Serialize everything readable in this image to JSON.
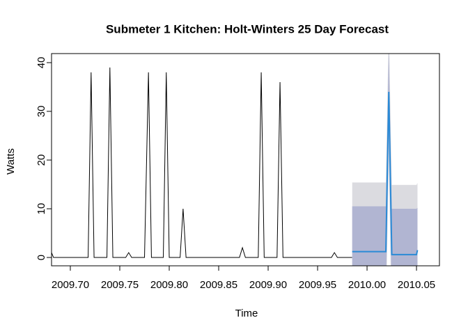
{
  "chart_data": {
    "type": "line",
    "title": "Submeter 1 Kitchen: Holt-Winters 25 Day Forecast",
    "x_label": "Time",
    "y_label": "Watts",
    "xlim": [
      2009.681,
      2010.0732
    ],
    "ylim": [
      -1.71,
      41.86
    ],
    "xticks": [
      {
        "value": 2009.7,
        "label": "2009.70"
      },
      2009.75,
      {
        "value": 2009.8,
        "label": "2009.80"
      },
      2009.85,
      {
        "value": 2009.9,
        "label": "2009.90"
      },
      2009.95,
      {
        "value": 2010.0,
        "label": "2010.00"
      },
      2010.05
    ],
    "yticks": [
      0,
      10,
      20,
      30,
      40
    ],
    "series": [
      {
        "color": "#000000",
        "x": [
          2009.681,
          2009.683,
          2009.718,
          2009.721,
          2009.724,
          2009.737,
          2009.74,
          2009.743,
          2009.756,
          2009.759,
          2009.762,
          2009.775,
          2009.779,
          2009.782,
          2009.794,
          2009.797,
          2009.8,
          2009.811,
          2009.814,
          2009.817,
          2009.871,
          2009.874,
          2009.877,
          2009.89,
          2009.893,
          2009.896,
          2009.909,
          2009.912,
          2009.915,
          2009.964,
          2009.967,
          2009.97,
          2009.985
        ],
        "values": [
          1,
          0,
          0,
          38,
          0,
          0,
          39,
          0,
          0,
          1,
          0,
          0,
          38,
          0,
          0,
          38,
          0,
          0,
          10,
          0,
          0,
          2,
          0,
          0,
          38,
          0,
          0,
          36,
          0,
          0,
          1,
          0,
          0
        ]
      },
      {
        "color": "#2a8ad6",
        "x": [
          2009.985,
          2010.019,
          2010.022,
          2010.025,
          2010.05,
          2010.051
        ],
        "values": [
          1.2,
          1.2,
          34,
          0.6,
          0.6,
          1.5
        ],
        "lower80": [
          -8,
          -8,
          25,
          -9,
          -9,
          -8
        ],
        "upper80": [
          10.5,
          10.5,
          43,
          10,
          10,
          10.2
        ],
        "lower95": [
          -13,
          -13,
          20,
          -14,
          -14,
          -13
        ],
        "upper95": [
          15.4,
          15.4,
          48,
          14.9,
          14.9,
          15.3
        ],
        "band80_color": "#b1b5d2",
        "band95_color": "#dbdbe0"
      }
    ]
  }
}
